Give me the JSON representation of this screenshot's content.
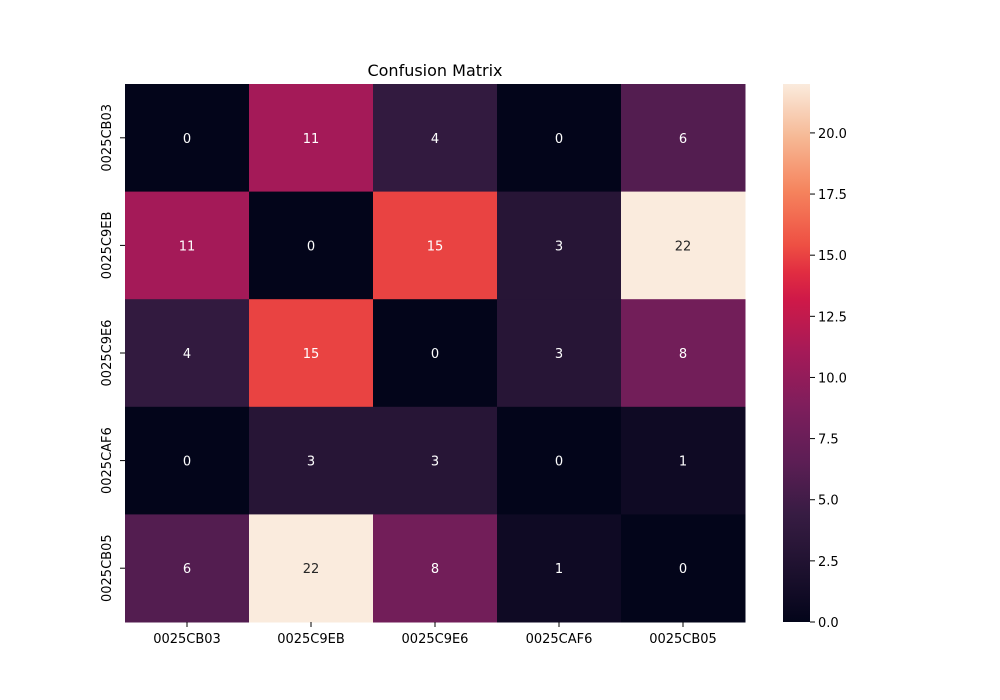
{
  "chart_data": {
    "type": "heatmap",
    "title": "Confusion Matrix",
    "xlabel": "",
    "ylabel": "",
    "x_categories": [
      "0025CB03",
      "0025C9EB",
      "0025C9E6",
      "0025CAF6",
      "0025CB05"
    ],
    "y_categories": [
      "0025CB03",
      "0025C9EB",
      "0025C9E6",
      "0025CAF6",
      "0025CB05"
    ],
    "matrix": [
      [
        0,
        11,
        4,
        0,
        6
      ],
      [
        11,
        0,
        15,
        3,
        22
      ],
      [
        4,
        15,
        0,
        3,
        8
      ],
      [
        0,
        3,
        3,
        0,
        1
      ],
      [
        6,
        22,
        8,
        1,
        0
      ]
    ],
    "colormap": "rocket",
    "vmin": 0,
    "vmax": 22,
    "colorbar": {
      "ticks": [
        0.0,
        2.5,
        5.0,
        7.5,
        10.0,
        12.5,
        15.0,
        17.5,
        20.0
      ],
      "tick_labels": [
        "0.0",
        "2.5",
        "5.0",
        "7.5",
        "10.0",
        "12.5",
        "15.0",
        "17.5",
        "20.0"
      ]
    },
    "annotations": true,
    "grid": false,
    "colorbar_position": "right"
  }
}
